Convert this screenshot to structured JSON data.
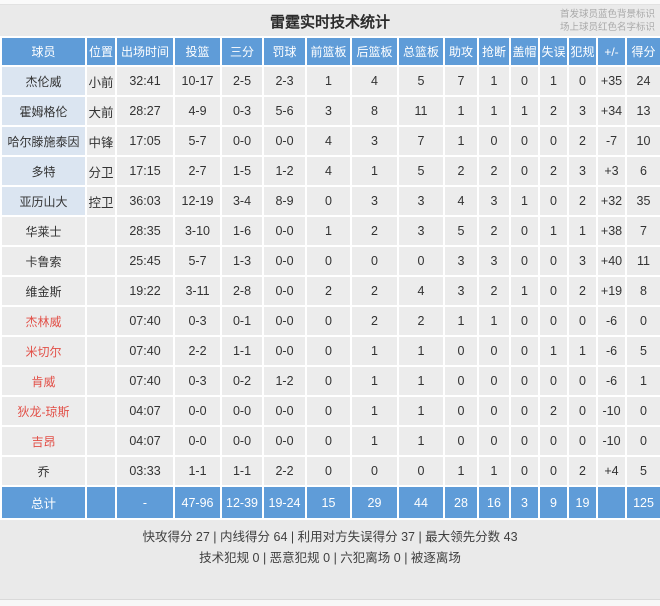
{
  "page": {
    "title": "雷霆实时技术统计",
    "note_line1": "首发球员蓝色背景标识",
    "note_line2": "场上球员红色名字标识"
  },
  "colors": {
    "header_blue": "#5F9CD8",
    "starter_name_bg": "#DBE5F1",
    "cell_bg": "#ECECEC",
    "oncourt_name_red": "#E25048",
    "total_row_bg": "#5F9CD8"
  },
  "table": {
    "headers": [
      "球员",
      "位置",
      "出场时间",
      "投篮",
      "三分",
      "罚球",
      "前篮板",
      "后篮板",
      "总篮板",
      "助攻",
      "抢断",
      "盖帽",
      "失误",
      "犯规",
      "+/-",
      "得分"
    ],
    "rows": [
      {
        "name": "杰伦威",
        "starter": true,
        "oncourt": false,
        "cells": [
          "小前",
          "32:41",
          "10-17",
          "2-5",
          "2-3",
          "1",
          "4",
          "5",
          "7",
          "1",
          "0",
          "1",
          "0",
          "+35",
          "24"
        ]
      },
      {
        "name": "霍姆格伦",
        "starter": true,
        "oncourt": false,
        "cells": [
          "大前",
          "28:27",
          "4-9",
          "0-3",
          "5-6",
          "3",
          "8",
          "11",
          "1",
          "1",
          "1",
          "2",
          "3",
          "+34",
          "13"
        ]
      },
      {
        "name": "哈尔滕施泰因",
        "starter": true,
        "oncourt": false,
        "cells": [
          "中锋",
          "17:05",
          "5-7",
          "0-0",
          "0-0",
          "4",
          "3",
          "7",
          "1",
          "0",
          "0",
          "0",
          "2",
          "-7",
          "10"
        ]
      },
      {
        "name": "多特",
        "starter": true,
        "oncourt": false,
        "cells": [
          "分卫",
          "17:15",
          "2-7",
          "1-5",
          "1-2",
          "4",
          "1",
          "5",
          "2",
          "2",
          "0",
          "2",
          "3",
          "+3",
          "6"
        ]
      },
      {
        "name": "亚历山大",
        "starter": true,
        "oncourt": false,
        "cells": [
          "控卫",
          "36:03",
          "12-19",
          "3-4",
          "8-9",
          "0",
          "3",
          "3",
          "4",
          "3",
          "1",
          "0",
          "2",
          "+32",
          "35"
        ]
      },
      {
        "name": "华莱士",
        "starter": false,
        "oncourt": false,
        "cells": [
          "",
          "28:35",
          "3-10",
          "1-6",
          "0-0",
          "1",
          "2",
          "3",
          "5",
          "2",
          "0",
          "1",
          "1",
          "+38",
          "7"
        ]
      },
      {
        "name": "卡鲁索",
        "starter": false,
        "oncourt": false,
        "cells": [
          "",
          "25:45",
          "5-7",
          "1-3",
          "0-0",
          "0",
          "0",
          "0",
          "3",
          "3",
          "0",
          "0",
          "3",
          "+40",
          "11"
        ]
      },
      {
        "name": "维金斯",
        "starter": false,
        "oncourt": false,
        "cells": [
          "",
          "19:22",
          "3-11",
          "2-8",
          "0-0",
          "2",
          "2",
          "4",
          "3",
          "2",
          "1",
          "0",
          "2",
          "+19",
          "8"
        ]
      },
      {
        "name": "杰林威",
        "starter": false,
        "oncourt": true,
        "cells": [
          "",
          "07:40",
          "0-3",
          "0-1",
          "0-0",
          "0",
          "2",
          "2",
          "1",
          "1",
          "0",
          "0",
          "0",
          "-6",
          "0"
        ]
      },
      {
        "name": "米切尔",
        "starter": false,
        "oncourt": true,
        "cells": [
          "",
          "07:40",
          "2-2",
          "1-1",
          "0-0",
          "0",
          "1",
          "1",
          "0",
          "0",
          "0",
          "1",
          "1",
          "-6",
          "5"
        ]
      },
      {
        "name": "肯威",
        "starter": false,
        "oncourt": true,
        "cells": [
          "",
          "07:40",
          "0-3",
          "0-2",
          "1-2",
          "0",
          "1",
          "1",
          "0",
          "0",
          "0",
          "0",
          "0",
          "-6",
          "1"
        ]
      },
      {
        "name": "狄龙-琼斯",
        "starter": false,
        "oncourt": true,
        "cells": [
          "",
          "04:07",
          "0-0",
          "0-0",
          "0-0",
          "0",
          "1",
          "1",
          "0",
          "0",
          "0",
          "2",
          "0",
          "-10",
          "0"
        ]
      },
      {
        "name": "吉昂",
        "starter": false,
        "oncourt": true,
        "cells": [
          "",
          "04:07",
          "0-0",
          "0-0",
          "0-0",
          "0",
          "1",
          "1",
          "0",
          "0",
          "0",
          "0",
          "0",
          "-10",
          "0"
        ]
      },
      {
        "name": "乔",
        "starter": false,
        "oncourt": false,
        "cells": [
          "",
          "03:33",
          "1-1",
          "1-1",
          "2-2",
          "0",
          "0",
          "0",
          "1",
          "1",
          "0",
          "0",
          "2",
          "+4",
          "5"
        ]
      }
    ],
    "total": {
      "name": "总计",
      "cells": [
        "",
        "-",
        "47-96",
        "12-39",
        "19-24",
        "15",
        "29",
        "44",
        "28",
        "16",
        "3",
        "9",
        "19",
        "",
        "125"
      ]
    }
  },
  "footer": {
    "line1": "快攻得分 27 | 内线得分 64 | 利用对方失误得分 37 | 最大领先分数 43",
    "line2": "技术犯规 0 | 恶意犯规 0 | 六犯离场 0 | 被逐离场"
  }
}
